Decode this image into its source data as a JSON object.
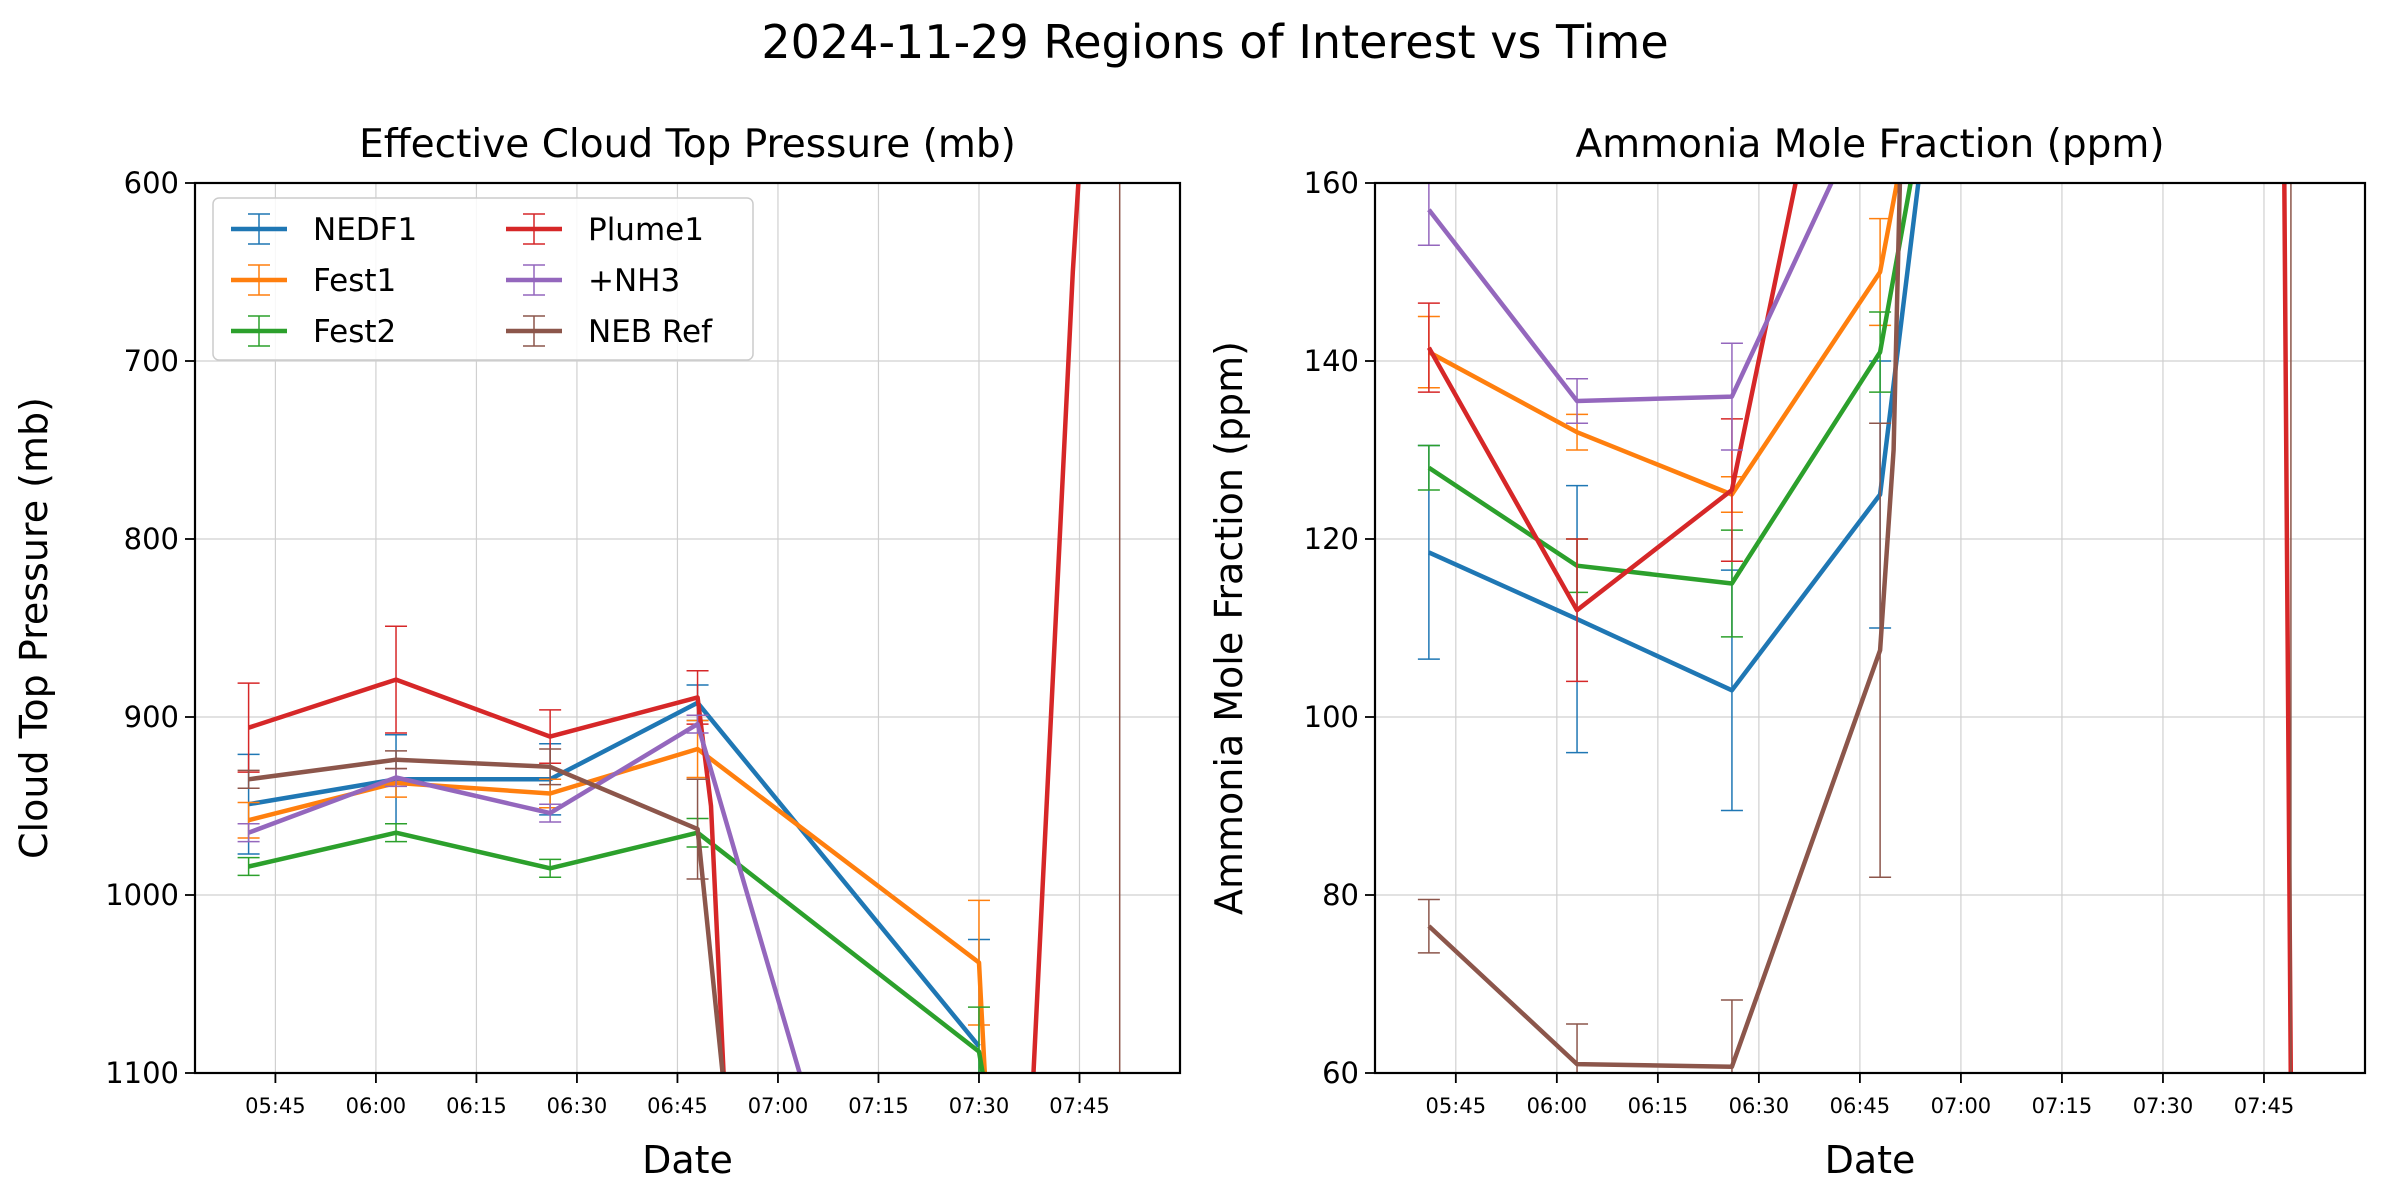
{
  "figure": {
    "suptitle": "2024-11-29 Regions of Interest vs Time"
  },
  "chart_data": [
    {
      "type": "line",
      "title": "Effective Cloud Top Pressure (mb)",
      "xlabel": "Date",
      "ylabel": "Cloud Top Pressure (mb)",
      "ylim": [
        1100,
        600
      ],
      "y_inverted": true,
      "yticks": [
        600,
        700,
        800,
        900,
        1000,
        1100
      ],
      "xlim": [
        "05:33",
        "08:00"
      ],
      "xticks": [
        "05:45",
        "06:00",
        "06:15",
        "06:30",
        "06:45",
        "07:00",
        "07:15",
        "07:30",
        "07:45"
      ],
      "grid": true,
      "legend": {
        "placement": "top-left",
        "columns": 2
      },
      "series": [
        {
          "name": "NEDF1",
          "color": "#1f77b4",
          "x": [
            "05:41",
            "06:03",
            "06:26",
            "06:48",
            "07:30"
          ],
          "y": [
            949,
            935,
            935,
            892,
            1085
          ],
          "err": [
            28,
            25,
            20,
            10,
            60
          ]
        },
        {
          "name": "Fest1",
          "color": "#ff7f0e",
          "x": [
            "05:41",
            "06:03",
            "06:26",
            "06:48",
            "07:30",
            "07:31"
          ],
          "y": [
            958,
            937,
            943,
            918,
            1038,
            1110
          ],
          "err": [
            10,
            8,
            8,
            16,
            35,
            0
          ]
        },
        {
          "name": "Fest2",
          "color": "#2ca02c",
          "x": [
            "05:41",
            "06:03",
            "06:26",
            "06:48",
            "07:30",
            "07:31"
          ],
          "y": [
            984,
            965,
            985,
            965,
            1088,
            1110
          ],
          "err": [
            5,
            5,
            5,
            8,
            25,
            0
          ]
        },
        {
          "name": "Plume1",
          "color": "#d62728",
          "x": [
            "05:41",
            "06:03",
            "06:26",
            "06:48",
            "06:50",
            "06:52",
            "07:38",
            "07:44",
            "07:45"
          ],
          "y": [
            906,
            879,
            911,
            889,
            950,
            1110,
            1110,
            650,
            590
          ],
          "err": [
            25,
            30,
            15,
            15,
            0,
            0,
            0,
            0,
            0
          ]
        },
        {
          "name": "+NH3",
          "color": "#9467bd",
          "x": [
            "05:41",
            "06:03",
            "06:26",
            "06:48",
            "07:04"
          ],
          "y": [
            965,
            934,
            954,
            904,
            1110
          ],
          "err": [
            5,
            5,
            5,
            5,
            0
          ]
        },
        {
          "name": "NEB Ref",
          "color": "#8c564b",
          "x": [
            "05:41",
            "06:03",
            "06:26",
            "06:48",
            "06:52"
          ],
          "y": [
            935,
            924,
            928,
            963,
            1110
          ],
          "err": [
            5,
            5,
            10,
            28,
            0
          ]
        }
      ],
      "vertical_lines": [
        {
          "x": "07:51",
          "color": "#8c564b"
        }
      ]
    },
    {
      "type": "line",
      "title": "Ammonia Mole Fraction (ppm)",
      "xlabel": "Date",
      "ylabel": "Ammonia Mole Fraction (ppm)",
      "ylim": [
        60,
        160
      ],
      "yticks": [
        60,
        80,
        100,
        120,
        140,
        160
      ],
      "xlim": [
        "05:33",
        "08:00"
      ],
      "xticks": [
        "05:45",
        "06:00",
        "06:15",
        "06:30",
        "06:45",
        "07:00",
        "07:15",
        "07:30",
        "07:45"
      ],
      "grid": true,
      "series": [
        {
          "name": "NEDF1",
          "color": "#1f77b4",
          "x": [
            "05:41",
            "06:03",
            "06:26",
            "06:48",
            "06:54"
          ],
          "y": [
            118.5,
            111,
            103,
            125,
            162
          ],
          "err": [
            12,
            15,
            13.5,
            15,
            0
          ]
        },
        {
          "name": "Fest1",
          "color": "#ff7f0e",
          "x": [
            "05:41",
            "06:03",
            "06:26",
            "06:48",
            "06:51"
          ],
          "y": [
            141,
            132,
            125,
            150,
            162
          ],
          "err": [
            4,
            2,
            2,
            6,
            0
          ]
        },
        {
          "name": "Fest2",
          "color": "#2ca02c",
          "x": [
            "05:41",
            "06:03",
            "06:26",
            "06:48",
            "06:53"
          ],
          "y": [
            128,
            117,
            115,
            141,
            162
          ],
          "err": [
            2.5,
            3,
            6,
            4.5,
            0
          ]
        },
        {
          "name": "Plume1",
          "color": "#d62728",
          "x": [
            "05:41",
            "06:03",
            "06:26",
            "06:36",
            "07:48",
            "07:49"
          ],
          "y": [
            141.5,
            112,
            125.5,
            162,
            162,
            58
          ],
          "err": [
            5,
            8,
            8,
            0,
            0,
            0
          ]
        },
        {
          "name": "+NH3",
          "color": "#9467bd",
          "x": [
            "05:41",
            "06:03",
            "06:26",
            "06:42"
          ],
          "y": [
            157,
            135.5,
            136,
            162
          ],
          "err": [
            4,
            2.5,
            6,
            0
          ]
        },
        {
          "name": "NEB Ref",
          "color": "#8c564b",
          "x": [
            "05:41",
            "06:03",
            "06:26",
            "06:48",
            "06:50",
            "06:51"
          ],
          "y": [
            76.5,
            61,
            60.7,
            107.5,
            130,
            162
          ],
          "err": [
            3,
            4.5,
            7.5,
            25.5,
            0,
            0
          ]
        }
      ],
      "vertical_lines": [
        {
          "x": "07:49",
          "color": "#8c564b"
        }
      ]
    }
  ]
}
